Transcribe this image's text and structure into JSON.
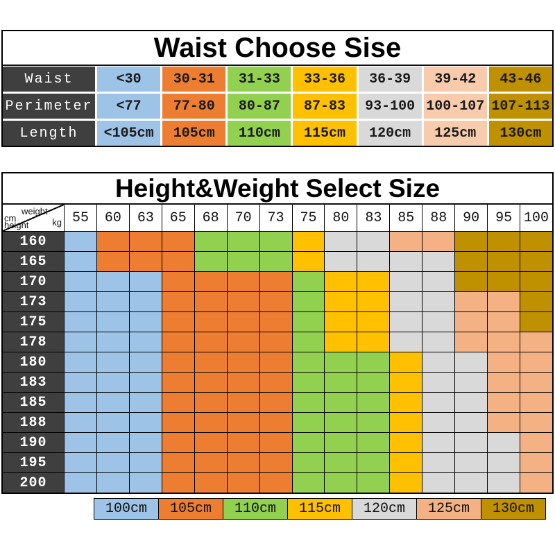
{
  "colors": {
    "blue": "#9DC3E6",
    "orange": "#ED7D31",
    "green": "#92D050",
    "yellow": "#FFC000",
    "gray": "#D9D9D9",
    "peach": "#F4B183",
    "light_peach": "#F8CBAD",
    "gold": "#BF9000",
    "header_dark": "#3F3F3F"
  },
  "waist_table": {
    "title": "Waist Choose Sise",
    "column_colors": [
      "blue",
      "orange",
      "green",
      "yellow",
      "gray",
      "light_peach",
      "gold"
    ],
    "rows": [
      {
        "label": "Waist",
        "values": [
          "<30",
          "30-31",
          "31-33",
          "33-36",
          "36-39",
          "39-42",
          "43-46"
        ]
      },
      {
        "label": "Perimeter",
        "values": [
          "<77",
          "77-80",
          "80-87",
          "87-83",
          "93-100",
          "100-107",
          "107-113"
        ]
      },
      {
        "label": "Length",
        "values": [
          "<105cm",
          "105cm",
          "110cm",
          "115cm",
          "120cm",
          "125cm",
          "130cm"
        ]
      }
    ]
  },
  "size_table": {
    "title": "Height&Weight Select Size",
    "corner": {
      "top_label": "weight",
      "top_unit": "kg",
      "side_unit": "cm",
      "side_label": "height"
    },
    "weights": [
      "55",
      "60",
      "63",
      "65",
      "68",
      "70",
      "73",
      "75",
      "80",
      "83",
      "85",
      "88",
      "90",
      "95",
      "100"
    ],
    "rows": [
      {
        "height": "160",
        "cells": [
          "blue",
          "orange",
          "orange",
          "orange",
          "green",
          "green",
          "green",
          "yellow",
          "gray",
          "gray",
          "peach",
          "peach",
          "gold",
          "gold",
          "gold"
        ]
      },
      {
        "height": "165",
        "cells": [
          "blue",
          "orange",
          "orange",
          "orange",
          "green",
          "green",
          "green",
          "yellow",
          "gray",
          "gray",
          "gray",
          "gray",
          "gold",
          "gold",
          "gold"
        ]
      },
      {
        "height": "170",
        "cells": [
          "blue",
          "blue",
          "blue",
          "orange",
          "orange",
          "orange",
          "orange",
          "green",
          "yellow",
          "yellow",
          "gray",
          "gray",
          "gold",
          "gold",
          "gold"
        ]
      },
      {
        "height": "173",
        "cells": [
          "blue",
          "blue",
          "blue",
          "orange",
          "orange",
          "orange",
          "orange",
          "green",
          "yellow",
          "yellow",
          "gray",
          "gray",
          "peach",
          "peach",
          "gold"
        ]
      },
      {
        "height": "175",
        "cells": [
          "blue",
          "blue",
          "blue",
          "orange",
          "orange",
          "orange",
          "orange",
          "green",
          "yellow",
          "yellow",
          "gray",
          "gray",
          "peach",
          "peach",
          "gold"
        ]
      },
      {
        "height": "178",
        "cells": [
          "blue",
          "blue",
          "blue",
          "orange",
          "orange",
          "orange",
          "orange",
          "green",
          "yellow",
          "yellow",
          "gray",
          "gray",
          "peach",
          "peach",
          "peach"
        ]
      },
      {
        "height": "180",
        "cells": [
          "blue",
          "blue",
          "blue",
          "orange",
          "orange",
          "orange",
          "orange",
          "green",
          "green",
          "green",
          "yellow",
          "gray",
          "gray",
          "peach",
          "peach"
        ]
      },
      {
        "height": "183",
        "cells": [
          "blue",
          "blue",
          "blue",
          "orange",
          "orange",
          "orange",
          "orange",
          "green",
          "green",
          "green",
          "yellow",
          "gray",
          "gray",
          "peach",
          "peach"
        ]
      },
      {
        "height": "185",
        "cells": [
          "blue",
          "blue",
          "blue",
          "orange",
          "orange",
          "orange",
          "orange",
          "green",
          "green",
          "green",
          "yellow",
          "gray",
          "gray",
          "peach",
          "peach"
        ]
      },
      {
        "height": "188",
        "cells": [
          "blue",
          "blue",
          "blue",
          "orange",
          "orange",
          "orange",
          "orange",
          "green",
          "green",
          "green",
          "yellow",
          "gray",
          "gray",
          "peach",
          "peach"
        ]
      },
      {
        "height": "190",
        "cells": [
          "blue",
          "blue",
          "blue",
          "orange",
          "orange",
          "orange",
          "orange",
          "green",
          "green",
          "green",
          "yellow",
          "gray",
          "gray",
          "gray",
          "peach"
        ]
      },
      {
        "height": "195",
        "cells": [
          "blue",
          "blue",
          "blue",
          "orange",
          "orange",
          "orange",
          "orange",
          "green",
          "green",
          "green",
          "yellow",
          "gray",
          "gray",
          "gray",
          "peach"
        ]
      },
      {
        "height": "200",
        "cells": [
          "blue",
          "blue",
          "blue",
          "orange",
          "orange",
          "orange",
          "orange",
          "green",
          "green",
          "green",
          "yellow",
          "gray",
          "gray",
          "gray",
          "peach"
        ]
      }
    ]
  },
  "legend": {
    "items": [
      {
        "label": "100cm",
        "color": "blue"
      },
      {
        "label": "105cm",
        "color": "orange"
      },
      {
        "label": "110cm",
        "color": "green"
      },
      {
        "label": "115cm",
        "color": "yellow"
      },
      {
        "label": "120cm",
        "color": "gray"
      },
      {
        "label": "125cm",
        "color": "peach"
      },
      {
        "label": "130cm",
        "color": "gold"
      }
    ]
  }
}
